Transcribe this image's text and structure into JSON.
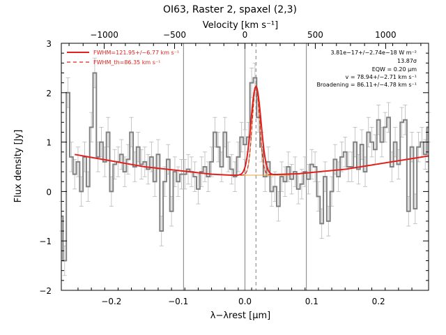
{
  "chart_data": {
    "type": "line",
    "title": "OI63, Raster 2, spaxel (2,3)",
    "xlabel": "λ−λrest [μm]",
    "ylabel": "Flux density [Jy]",
    "top_axis_label": "Velocity [km s⁻¹]",
    "xlim": [
      -0.275,
      0.275
    ],
    "ylim": [
      -2,
      3
    ],
    "xticks": [
      -0.2,
      -0.1,
      0.0,
      0.1,
      0.2
    ],
    "xtick_labels": [
      "−0.2",
      "−0.1",
      "0.0",
      "0.1",
      "0.2"
    ],
    "yticks": [
      -2,
      -1,
      0,
      1,
      2,
      3
    ],
    "ytick_labels": [
      "−2",
      "−1",
      "0",
      "1",
      "2",
      "3"
    ],
    "top_ticks_kms": [
      -1000,
      -500,
      0,
      500,
      1000
    ],
    "top_tick_labels": [
      "−1000",
      "−500",
      "0",
      "500",
      "1000"
    ],
    "vlines_x": [
      -0.092,
      0.0,
      0.092
    ],
    "dashed_vline_x": 0.0165,
    "legend": [
      {
        "label": "FWHM=121.95+/−6.77 km s⁻¹",
        "style": "solid",
        "color": "#e0201c"
      },
      {
        "label": "FWHM_th=86.35 km s⁻¹",
        "style": "dashed",
        "color": "#e0201c"
      }
    ],
    "annotations": [
      "3.81e−17+/−2.74e−18 W m⁻²",
      "13.87σ",
      "EQW = 0.20 μm",
      "v = 78.94+/−2.71 km s⁻¹",
      "Broadening = 86.11+/−4.78 km s⁻¹"
    ],
    "series": [
      {
        "kind": "data",
        "color": "#808080",
        "x": [
          -0.275,
          -0.27,
          -0.265,
          -0.26,
          -0.255,
          -0.25,
          -0.245,
          -0.24,
          -0.235,
          -0.23,
          -0.225,
          -0.22,
          -0.215,
          -0.21,
          -0.205,
          -0.2,
          -0.195,
          -0.19,
          -0.185,
          -0.18,
          -0.175,
          -0.17,
          -0.165,
          -0.16,
          -0.155,
          -0.15,
          -0.145,
          -0.14,
          -0.135,
          -0.13,
          -0.125,
          -0.12,
          -0.115,
          -0.11,
          -0.105,
          -0.1,
          -0.095,
          -0.09,
          -0.085,
          -0.08,
          -0.075,
          -0.07,
          -0.065,
          -0.06,
          -0.055,
          -0.05,
          -0.045,
          -0.04,
          -0.035,
          -0.03,
          -0.025,
          -0.02,
          -0.015,
          -0.01,
          -0.005,
          0.0,
          0.005,
          0.01,
          0.015,
          0.02,
          0.025,
          0.03,
          0.035,
          0.04,
          0.045,
          0.05,
          0.055,
          0.06,
          0.065,
          0.07,
          0.075,
          0.08,
          0.085,
          0.09,
          0.095,
          0.1,
          0.105,
          0.11,
          0.115,
          0.12,
          0.125,
          0.13,
          0.135,
          0.14,
          0.145,
          0.15,
          0.155,
          0.16,
          0.165,
          0.17,
          0.175,
          0.18,
          0.185,
          0.19,
          0.195,
          0.2,
          0.205,
          0.21,
          0.215,
          0.22,
          0.225,
          0.23,
          0.235,
          0.24,
          0.245,
          0.25,
          0.255,
          0.26,
          0.265,
          0.27,
          0.275
        ],
        "y": [
          -0.5,
          -1.4,
          2.0,
          0.7,
          0.35,
          0.6,
          0.0,
          0.7,
          0.1,
          1.3,
          2.4,
          0.7,
          1.0,
          0.6,
          1.2,
          0.0,
          0.55,
          0.6,
          0.75,
          0.4,
          0.65,
          1.2,
          0.5,
          0.9,
          0.55,
          0.6,
          0.45,
          0.7,
          0.2,
          0.75,
          -0.8,
          0.2,
          0.65,
          -0.4,
          0.4,
          0.2,
          0.35,
          0.35,
          0.45,
          0.4,
          0.3,
          0.05,
          0.4,
          0.5,
          0.3,
          0.6,
          1.2,
          0.9,
          0.5,
          1.2,
          0.7,
          0.45,
          0.3,
          0.7,
          1.1,
          0.95,
          1.1,
          2.2,
          2.3,
          1.5,
          0.9,
          0.3,
          0.6,
          0.0,
          0.1,
          -0.3,
          0.3,
          0.2,
          0.5,
          0.25,
          0.4,
          0.05,
          0.15,
          0.4,
          0.25,
          0.55,
          0.5,
          -0.1,
          -0.65,
          0.3,
          -0.6,
          0.0,
          0.65,
          0.3,
          0.7,
          0.8,
          0.5,
          0.5,
          1.0,
          0.45,
          0.95,
          0.4,
          1.2,
          1.0,
          0.85,
          1.45,
          1.0,
          1.3,
          1.5,
          0.5,
          1.0,
          0.55,
          1.4,
          1.45,
          -0.4,
          0.9,
          -0.35,
          0.9,
          1.0,
          0.75,
          1.3
        ]
      },
      {
        "kind": "fit",
        "color": "#e0201c",
        "line_center": 0.0165,
        "line_peak": 1.8,
        "line_sigma": 0.0075
      },
      {
        "kind": "fit_thermal",
        "color": "#e0201c",
        "line_center": 0.0165,
        "line_peak": 1.8,
        "line_sigma": 0.0055
      }
    ],
    "continuum": {
      "x": [
        -0.255,
        -0.15,
        -0.05,
        -0.02,
        0.02,
        0.08,
        0.15,
        0.275
      ],
      "y": [
        0.75,
        0.5,
        0.35,
        0.33,
        0.33,
        0.36,
        0.45,
        0.72
      ]
    },
    "errorbar_size": 0.3,
    "colors": {
      "data": "#808080",
      "fit": "#e0201c",
      "component": "#e8a13a",
      "axis": "#000000",
      "vline": "#7f7f7f"
    }
  }
}
